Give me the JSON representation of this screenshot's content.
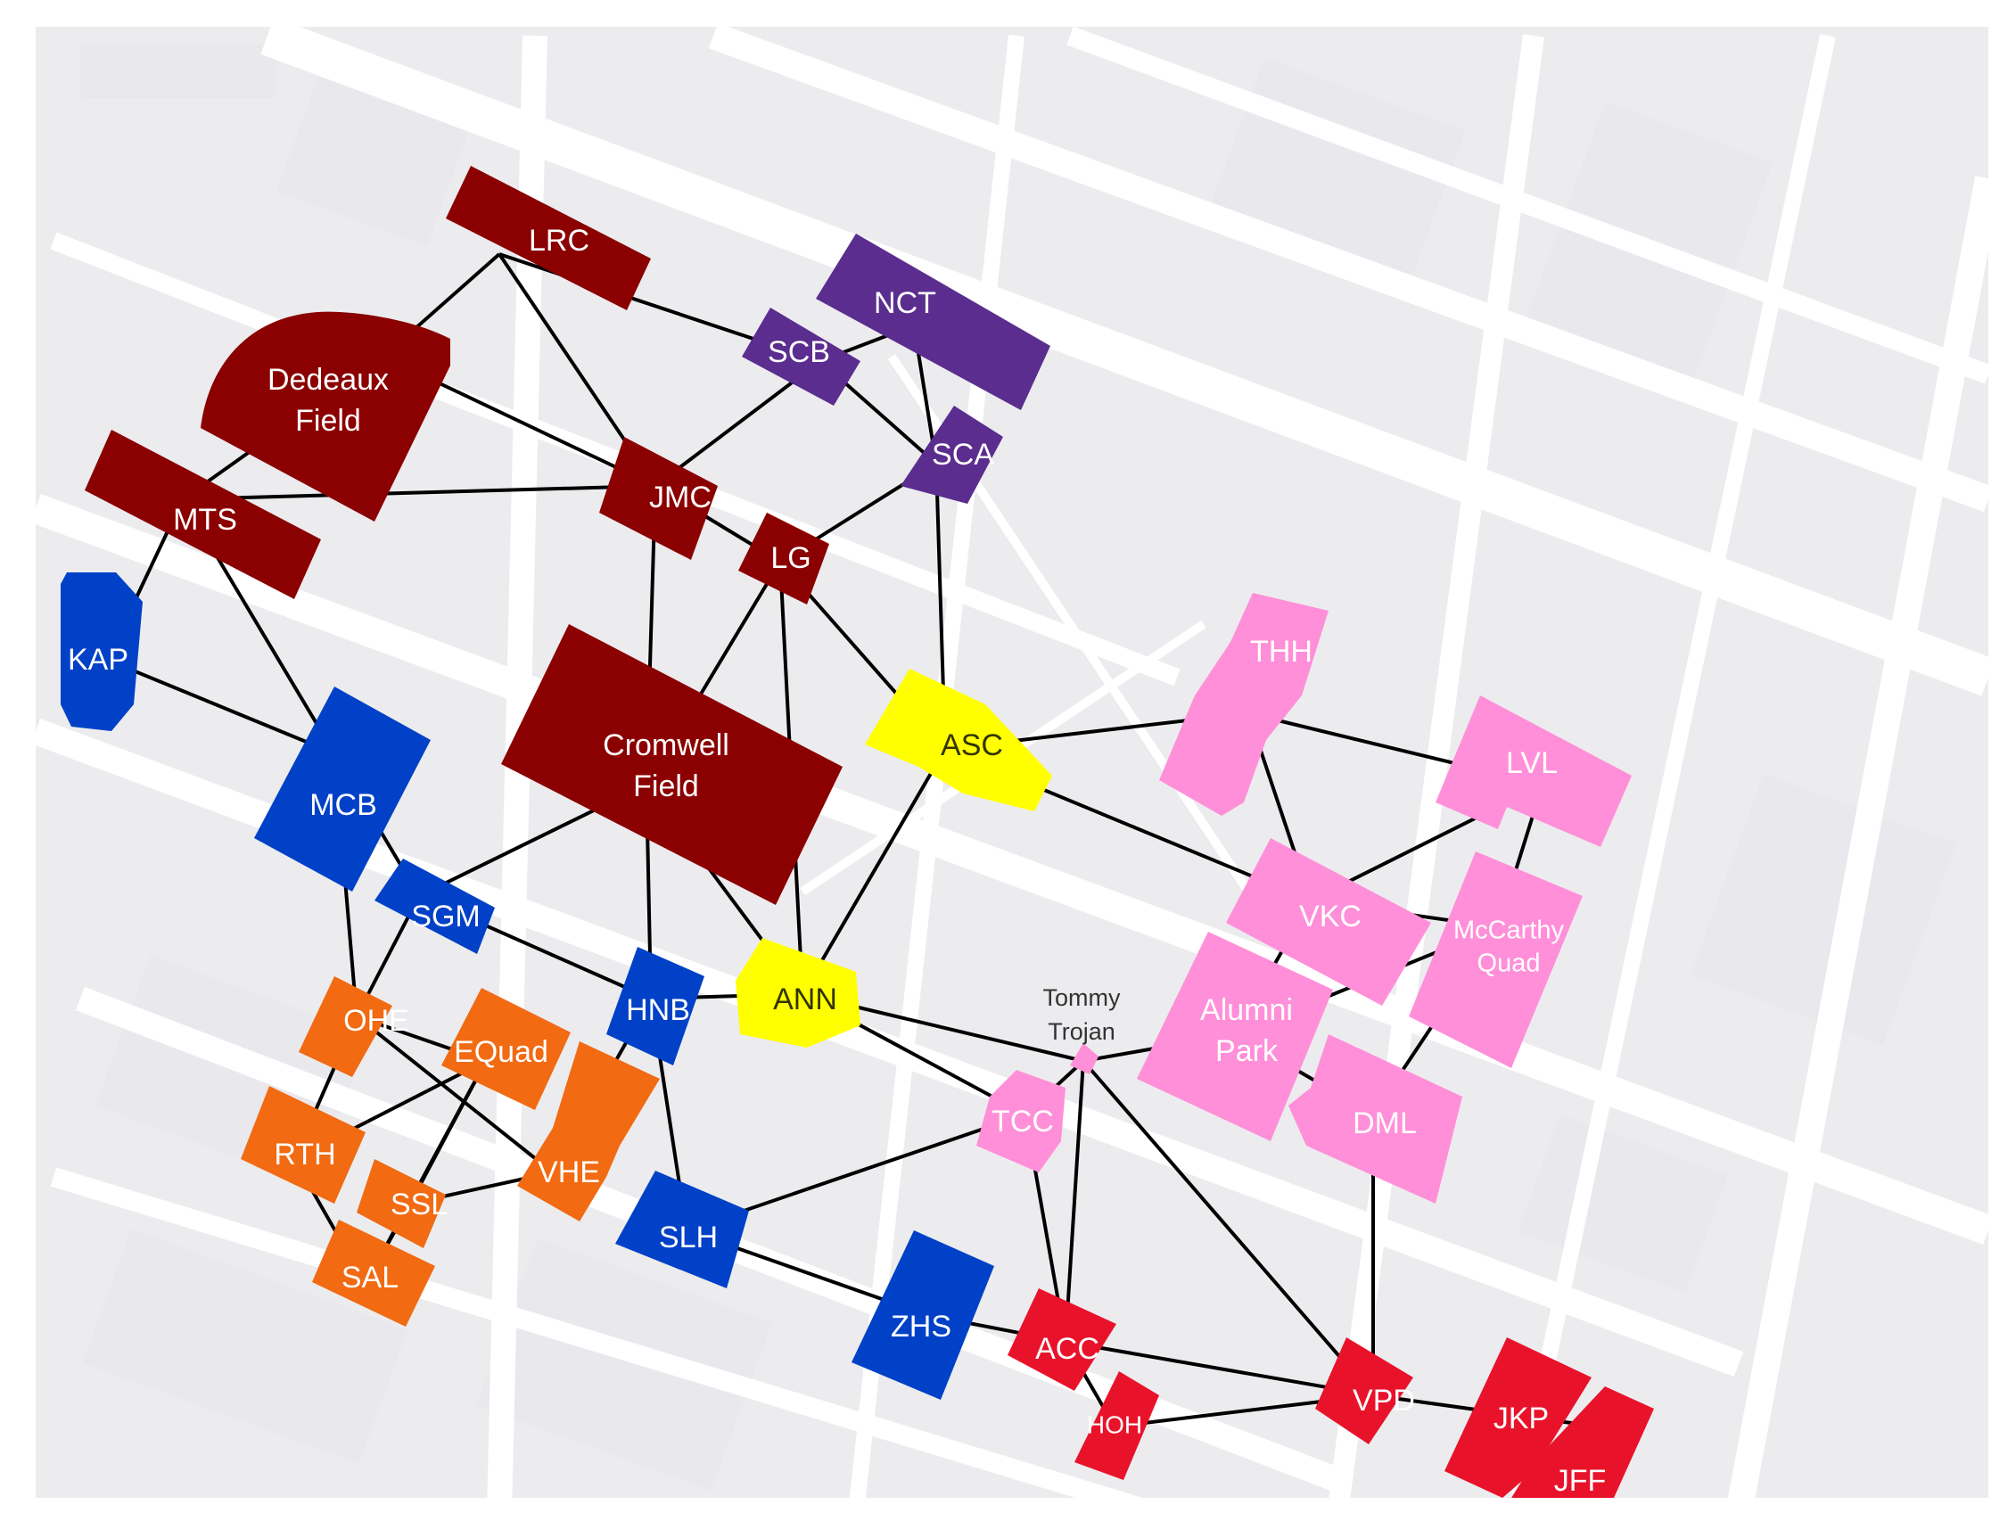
{
  "colors": {
    "cardinal": "#8b0000",
    "purple": "#5b2d8e",
    "blue": "#0041c7",
    "orange": "#f26a11",
    "yellow": "#ffff00",
    "pink": "#ff8fd8",
    "red": "#e8132b",
    "map_bg": "#ececef",
    "street": "#ffffff",
    "edge": "#000000"
  },
  "nodes": [
    {
      "id": "LRC",
      "label": "LRC",
      "color": "cardinal"
    },
    {
      "id": "DED",
      "label": "Dedeaux Field",
      "label_lines": [
        "Dedeaux",
        "Field"
      ],
      "color": "cardinal"
    },
    {
      "id": "MTS",
      "label": "MTS",
      "color": "cardinal"
    },
    {
      "id": "JMC",
      "label": "JMC",
      "color": "cardinal"
    },
    {
      "id": "LG",
      "label": "LG",
      "color": "cardinal"
    },
    {
      "id": "CRF",
      "label": "Cromwell Field",
      "label_lines": [
        "Cromwell",
        "Field"
      ],
      "color": "cardinal"
    },
    {
      "id": "NCT",
      "label": "NCT",
      "color": "purple"
    },
    {
      "id": "SCB",
      "label": "SCB",
      "color": "purple"
    },
    {
      "id": "SCA",
      "label": "SCA",
      "color": "purple"
    },
    {
      "id": "KAP",
      "label": "KAP",
      "color": "blue"
    },
    {
      "id": "MCB",
      "label": "MCB",
      "color": "blue"
    },
    {
      "id": "SGM",
      "label": "SGM",
      "color": "blue"
    },
    {
      "id": "HNB",
      "label": "HNB",
      "color": "blue"
    },
    {
      "id": "SLH",
      "label": "SLH",
      "color": "blue"
    },
    {
      "id": "ZHS",
      "label": "ZHS",
      "color": "blue"
    },
    {
      "id": "OHE",
      "label": "OHE",
      "color": "orange"
    },
    {
      "id": "EQU",
      "label": "EQuad",
      "color": "orange"
    },
    {
      "id": "RTH",
      "label": "RTH",
      "color": "orange"
    },
    {
      "id": "VHE",
      "label": "VHE",
      "color": "orange"
    },
    {
      "id": "SSL",
      "label": "SSL",
      "color": "orange"
    },
    {
      "id": "SAL",
      "label": "SAL",
      "color": "orange"
    },
    {
      "id": "ASC",
      "label": "ASC",
      "color": "yellow"
    },
    {
      "id": "ANN",
      "label": "ANN",
      "color": "yellow"
    },
    {
      "id": "THH",
      "label": "THH",
      "color": "pink"
    },
    {
      "id": "LVL",
      "label": "LVL",
      "color": "pink"
    },
    {
      "id": "VKC",
      "label": "VKC",
      "color": "pink"
    },
    {
      "id": "MCQ",
      "label": "McCarthy Quad",
      "label_lines": [
        "McCarthy",
        "Quad"
      ],
      "color": "pink"
    },
    {
      "id": "ALP",
      "label": "Alumni Park",
      "label_lines": [
        "Alumni",
        "Park"
      ],
      "color": "pink"
    },
    {
      "id": "DML",
      "label": "DML",
      "color": "pink"
    },
    {
      "id": "TCC",
      "label": "TCC",
      "color": "pink"
    },
    {
      "id": "TT",
      "label": "Tommy Trojan",
      "label_lines": [
        "Tommy",
        "Trojan"
      ],
      "color": "pink"
    },
    {
      "id": "ACC",
      "label": "ACC",
      "color": "red"
    },
    {
      "id": "HOH",
      "label": "HOH",
      "color": "red"
    },
    {
      "id": "VPD",
      "label": "VPD",
      "color": "red"
    },
    {
      "id": "JKP",
      "label": "JKP",
      "color": "red"
    },
    {
      "id": "JFF",
      "label": "JFF",
      "color": "red"
    }
  ],
  "edges": [
    [
      "LRC",
      "DED"
    ],
    [
      "LRC",
      "SCB"
    ],
    [
      "LRC",
      "JMC"
    ],
    [
      "DED",
      "JMC"
    ],
    [
      "DED",
      "MTS"
    ],
    [
      "MTS",
      "KAP"
    ],
    [
      "MTS",
      "JMC"
    ],
    [
      "MTS",
      "MCB"
    ],
    [
      "JMC",
      "SCB"
    ],
    [
      "JMC",
      "LG"
    ],
    [
      "JMC",
      "CRF"
    ],
    [
      "SCB",
      "NCT"
    ],
    [
      "SCB",
      "SCA"
    ],
    [
      "NCT",
      "SCA"
    ],
    [
      "SCA",
      "LG"
    ],
    [
      "SCA",
      "ASC"
    ],
    [
      "LG",
      "CRF"
    ],
    [
      "LG",
      "ASC"
    ],
    [
      "LG",
      "ANN"
    ],
    [
      "KAP",
      "MCB"
    ],
    [
      "MCB",
      "SGM"
    ],
    [
      "MCB",
      "OHE"
    ],
    [
      "CRF",
      "SGM"
    ],
    [
      "CRF",
      "HNB"
    ],
    [
      "CRF",
      "ANN"
    ],
    [
      "SGM",
      "HNB"
    ],
    [
      "SGM",
      "OHE"
    ],
    [
      "HNB",
      "ANN"
    ],
    [
      "HNB",
      "SLH"
    ],
    [
      "HNB",
      "VHE"
    ],
    [
      "ASC",
      "ANN"
    ],
    [
      "ASC",
      "THH"
    ],
    [
      "ASC",
      "VKC"
    ],
    [
      "OHE",
      "EQU"
    ],
    [
      "OHE",
      "RTH"
    ],
    [
      "OHE",
      "VHE"
    ],
    [
      "EQU",
      "RTH"
    ],
    [
      "EQU",
      "SSL"
    ],
    [
      "EQU",
      "SAL"
    ],
    [
      "VHE",
      "SSL"
    ],
    [
      "RTH",
      "SAL"
    ],
    [
      "SSL",
      "SAL"
    ],
    [
      "ANN",
      "TT"
    ],
    [
      "ANN",
      "TCC"
    ],
    [
      "SLH",
      "TCC"
    ],
    [
      "SLH",
      "ZHS"
    ],
    [
      "ZHS",
      "ACC"
    ],
    [
      "THH",
      "LVL"
    ],
    [
      "THH",
      "VKC"
    ],
    [
      "LVL",
      "VKC"
    ],
    [
      "LVL",
      "MCQ"
    ],
    [
      "VKC",
      "MCQ"
    ],
    [
      "VKC",
      "ALP"
    ],
    [
      "ALP",
      "DML"
    ],
    [
      "ALP",
      "TT"
    ],
    [
      "ALP",
      "MCQ"
    ],
    [
      "MCQ",
      "DML"
    ],
    [
      "DML",
      "VPD"
    ],
    [
      "TT",
      "TCC"
    ],
    [
      "TT",
      "ACC"
    ],
    [
      "TT",
      "VPD"
    ],
    [
      "TCC",
      "ACC"
    ],
    [
      "ACC",
      "HOH"
    ],
    [
      "ACC",
      "VPD"
    ],
    [
      "HOH",
      "VPD"
    ],
    [
      "VPD",
      "JKP"
    ],
    [
      "JKP",
      "JFF"
    ]
  ],
  "background": {
    "label_icons": [
      "map-streets"
    ]
  }
}
